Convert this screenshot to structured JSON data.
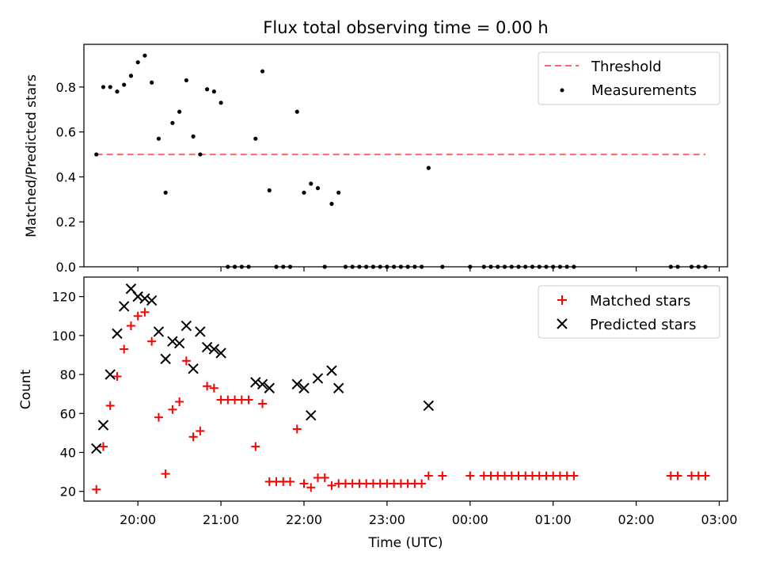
{
  "title": "Flux total observing time = 0.00 h",
  "chart_data": [
    {
      "type": "scatter",
      "ylabel": "Matched/Predicted stars",
      "ylim": [
        0,
        0.99
      ],
      "yticks": [
        "0.0",
        "0.2",
        "0.4",
        "0.6",
        "0.8"
      ],
      "legend_position": "upper-right",
      "threshold": {
        "name": "Threshold",
        "value": 0.5,
        "x_range": [
          "19:30",
          "02:50"
        ],
        "color": "#ff6666",
        "style": "dashed"
      },
      "series": [
        {
          "name": "Measurements",
          "color": "#000000",
          "marker": "dot",
          "points": [
            [
              "19:30",
              0.5
            ],
            [
              "19:35",
              0.8
            ],
            [
              "19:40",
              0.8
            ],
            [
              "19:45",
              0.78
            ],
            [
              "19:50",
              0.81
            ],
            [
              "19:55",
              0.85
            ],
            [
              "20:00",
              0.91
            ],
            [
              "20:05",
              0.94
            ],
            [
              "20:10",
              0.82
            ],
            [
              "20:15",
              0.57
            ],
            [
              "20:20",
              0.33
            ],
            [
              "20:25",
              0.64
            ],
            [
              "20:30",
              0.69
            ],
            [
              "20:35",
              0.83
            ],
            [
              "20:40",
              0.58
            ],
            [
              "20:45",
              0.5
            ],
            [
              "20:50",
              0.79
            ],
            [
              "20:55",
              0.78
            ],
            [
              "21:00",
              0.73
            ],
            [
              "21:05",
              0.0
            ],
            [
              "21:10",
              0.0
            ],
            [
              "21:15",
              0.0
            ],
            [
              "21:20",
              0.0
            ],
            [
              "21:25",
              0.57
            ],
            [
              "21:30",
              0.87
            ],
            [
              "21:35",
              0.34
            ],
            [
              "21:40",
              0.0
            ],
            [
              "21:45",
              0.0
            ],
            [
              "21:50",
              0.0
            ],
            [
              "21:55",
              0.69
            ],
            [
              "22:00",
              0.33
            ],
            [
              "22:05",
              0.37
            ],
            [
              "22:10",
              0.35
            ],
            [
              "22:15",
              0.0
            ],
            [
              "22:20",
              0.28
            ],
            [
              "22:25",
              0.33
            ],
            [
              "22:30",
              0.0
            ],
            [
              "22:35",
              0.0
            ],
            [
              "22:40",
              0.0
            ],
            [
              "22:45",
              0.0
            ],
            [
              "22:50",
              0.0
            ],
            [
              "22:55",
              0.0
            ],
            [
              "23:00",
              0.0
            ],
            [
              "23:05",
              0.0
            ],
            [
              "23:10",
              0.0
            ],
            [
              "23:15",
              0.0
            ],
            [
              "23:20",
              0.0
            ],
            [
              "23:25",
              0.0
            ],
            [
              "23:30",
              0.44
            ],
            [
              "23:40",
              0.0
            ],
            [
              "00:00",
              0.0
            ],
            [
              "00:10",
              0.0
            ],
            [
              "00:15",
              0.0
            ],
            [
              "00:20",
              0.0
            ],
            [
              "00:25",
              0.0
            ],
            [
              "00:30",
              0.0
            ],
            [
              "00:35",
              0.0
            ],
            [
              "00:40",
              0.0
            ],
            [
              "00:45",
              0.0
            ],
            [
              "00:50",
              0.0
            ],
            [
              "00:55",
              0.0
            ],
            [
              "01:00",
              0.0
            ],
            [
              "01:05",
              0.0
            ],
            [
              "01:10",
              0.0
            ],
            [
              "01:15",
              0.0
            ],
            [
              "02:25",
              0.0
            ],
            [
              "02:30",
              0.0
            ],
            [
              "02:40",
              0.0
            ],
            [
              "02:45",
              0.0
            ],
            [
              "02:50",
              0.0
            ]
          ]
        }
      ]
    },
    {
      "type": "scatter",
      "xlabel": "Time (UTC)",
      "ylabel": "Count",
      "ylim": [
        15,
        130
      ],
      "yticks": [
        "20",
        "40",
        "60",
        "80",
        "100",
        "120"
      ],
      "xticks": [
        "20:00",
        "21:00",
        "22:00",
        "23:00",
        "00:00",
        "01:00",
        "02:00",
        "03:00"
      ],
      "x_range": [
        "19:21",
        "03:06"
      ],
      "legend_position": "upper-right",
      "series": [
        {
          "name": "Matched stars",
          "color": "#ff0000",
          "marker": "plus",
          "points": [
            [
              "19:30",
              21
            ],
            [
              "19:35",
              43
            ],
            [
              "19:40",
              64
            ],
            [
              "19:45",
              79
            ],
            [
              "19:50",
              93
            ],
            [
              "19:55",
              105
            ],
            [
              "20:00",
              110
            ],
            [
              "20:05",
              112
            ],
            [
              "20:10",
              97
            ],
            [
              "20:15",
              58
            ],
            [
              "20:20",
              29
            ],
            [
              "20:25",
              62
            ],
            [
              "20:30",
              66
            ],
            [
              "20:35",
              87
            ],
            [
              "20:40",
              48
            ],
            [
              "20:45",
              51
            ],
            [
              "20:50",
              74
            ],
            [
              "20:55",
              73
            ],
            [
              "21:00",
              67
            ],
            [
              "21:05",
              67
            ],
            [
              "21:10",
              67
            ],
            [
              "21:15",
              67
            ],
            [
              "21:20",
              67
            ],
            [
              "21:25",
              43
            ],
            [
              "21:30",
              65
            ],
            [
              "21:35",
              25
            ],
            [
              "21:40",
              25
            ],
            [
              "21:45",
              25
            ],
            [
              "21:50",
              25
            ],
            [
              "21:55",
              52
            ],
            [
              "22:00",
              24
            ],
            [
              "22:05",
              22
            ],
            [
              "22:10",
              27
            ],
            [
              "22:15",
              27
            ],
            [
              "22:20",
              23
            ],
            [
              "22:25",
              24
            ],
            [
              "22:30",
              24
            ],
            [
              "22:35",
              24
            ],
            [
              "22:40",
              24
            ],
            [
              "22:45",
              24
            ],
            [
              "22:50",
              24
            ],
            [
              "22:55",
              24
            ],
            [
              "23:00",
              24
            ],
            [
              "23:05",
              24
            ],
            [
              "23:10",
              24
            ],
            [
              "23:15",
              24
            ],
            [
              "23:20",
              24
            ],
            [
              "23:25",
              24
            ],
            [
              "23:30",
              28
            ],
            [
              "23:40",
              28
            ],
            [
              "00:00",
              28
            ],
            [
              "00:10",
              28
            ],
            [
              "00:15",
              28
            ],
            [
              "00:20",
              28
            ],
            [
              "00:25",
              28
            ],
            [
              "00:30",
              28
            ],
            [
              "00:35",
              28
            ],
            [
              "00:40",
              28
            ],
            [
              "00:45",
              28
            ],
            [
              "00:50",
              28
            ],
            [
              "00:55",
              28
            ],
            [
              "01:00",
              28
            ],
            [
              "01:05",
              28
            ],
            [
              "01:10",
              28
            ],
            [
              "01:15",
              28
            ],
            [
              "02:25",
              28
            ],
            [
              "02:30",
              28
            ],
            [
              "02:40",
              28
            ],
            [
              "02:45",
              28
            ],
            [
              "02:50",
              28
            ]
          ]
        },
        {
          "name": "Predicted stars",
          "color": "#000000",
          "marker": "x",
          "points": [
            [
              "19:30",
              42
            ],
            [
              "19:35",
              54
            ],
            [
              "19:40",
              80
            ],
            [
              "19:45",
              101
            ],
            [
              "19:50",
              115
            ],
            [
              "19:55",
              124
            ],
            [
              "20:00",
              120
            ],
            [
              "20:05",
              119
            ],
            [
              "20:10",
              118
            ],
            [
              "20:15",
              102
            ],
            [
              "20:20",
              88
            ],
            [
              "20:25",
              97
            ],
            [
              "20:30",
              96
            ],
            [
              "20:35",
              105
            ],
            [
              "20:40",
              83
            ],
            [
              "20:45",
              102
            ],
            [
              "20:50",
              94
            ],
            [
              "20:55",
              93
            ],
            [
              "21:00",
              91
            ],
            [
              "21:25",
              76
            ],
            [
              "21:30",
              75
            ],
            [
              "21:35",
              73
            ],
            [
              "21:55",
              75
            ],
            [
              "22:00",
              73
            ],
            [
              "22:05",
              59
            ],
            [
              "22:10",
              78
            ],
            [
              "22:20",
              82
            ],
            [
              "22:25",
              73
            ],
            [
              "23:30",
              64
            ]
          ]
        }
      ]
    }
  ]
}
